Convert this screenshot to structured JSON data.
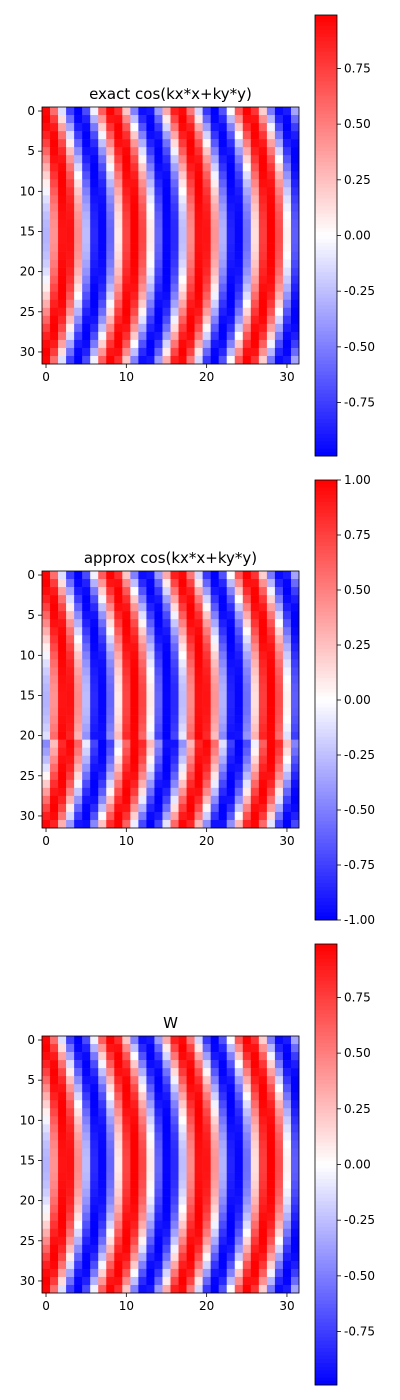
{
  "colormap": {
    "name": "bwr",
    "low": "#0000ff",
    "mid": "#ffffff",
    "high": "#ff0000"
  },
  "chart_data": [
    {
      "type": "heatmap",
      "title": "exact cos(kx*x+ky*y)",
      "grid": {
        "rows": 32,
        "cols": 32
      },
      "x_ticks": [
        0,
        10,
        20,
        30
      ],
      "y_ticks": [
        0,
        5,
        10,
        15,
        20,
        25,
        30
      ],
      "pattern": {
        "kx_cycles_per_sample": 0.118,
        "bend_amplitude_cols": 3.0,
        "bend_center_row": 15.5,
        "bend_half_width_rows": 16
      },
      "colorbar": {
        "vmin": -0.99,
        "vmax": 0.99,
        "ticks": [
          "0.75",
          "0.50",
          "0.25",
          "0.00",
          "-0.25",
          "-0.50",
          "-0.75"
        ]
      }
    },
    {
      "type": "heatmap",
      "title": "approx cos(kx*x+ky*y)",
      "grid": {
        "rows": 32,
        "cols": 32
      },
      "x_ticks": [
        0,
        10,
        20,
        30
      ],
      "y_ticks": [
        0,
        5,
        10,
        15,
        20,
        25,
        30
      ],
      "pattern": {
        "kx_cycles_per_sample": 0.118,
        "bend_amplitude_cols": 3.0,
        "bend_center_row": 15.5,
        "bend_half_width_rows": 16,
        "discontinuity_row": 20.5
      },
      "colorbar": {
        "vmin": -1.0,
        "vmax": 1.0,
        "ticks": [
          "1.00",
          "0.75",
          "0.50",
          "0.25",
          "0.00",
          "-0.25",
          "-0.50",
          "-0.75",
          "-1.00"
        ]
      }
    },
    {
      "type": "heatmap",
      "title": "W",
      "grid": {
        "rows": 32,
        "cols": 32
      },
      "x_ticks": [
        0,
        10,
        20,
        30
      ],
      "y_ticks": [
        0,
        5,
        10,
        15,
        20,
        25,
        30
      ],
      "pattern": {
        "kx_cycles_per_sample": 0.118,
        "bend_amplitude_cols": 3.0,
        "bend_center_row": 15.5,
        "bend_half_width_rows": 16
      },
      "colorbar": {
        "vmin": -0.99,
        "vmax": 0.99,
        "ticks": [
          "0.75",
          "0.50",
          "0.25",
          "0.00",
          "-0.25",
          "-0.50",
          "-0.75"
        ]
      }
    }
  ]
}
